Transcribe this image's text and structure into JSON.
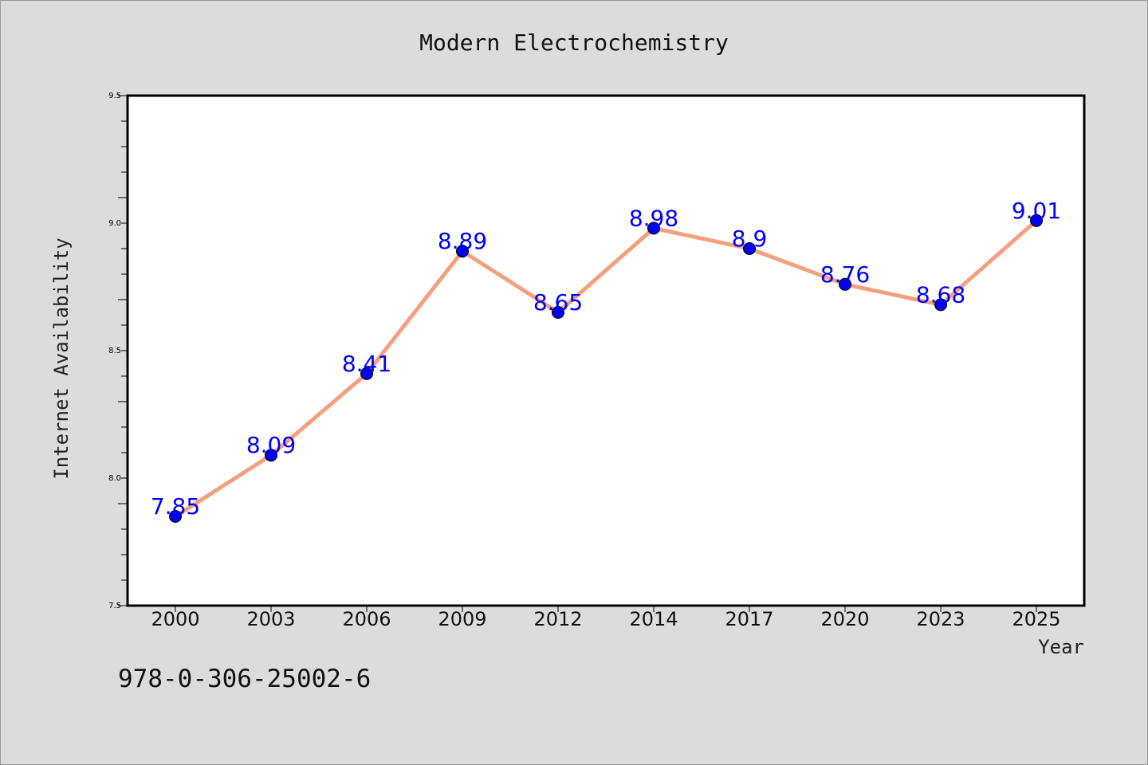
{
  "chart_data": {
    "type": "line",
    "title": "Modern Electrochemistry",
    "xlabel": "Year",
    "ylabel": "Internet Availability",
    "categories": [
      "2000",
      "2003",
      "2006",
      "2009",
      "2012",
      "2014",
      "2017",
      "2020",
      "2023",
      "2025"
    ],
    "values": [
      7.85,
      8.09,
      8.41,
      8.89,
      8.65,
      8.98,
      8.9,
      8.76,
      8.68,
      9.01
    ],
    "data_labels": [
      "7.85",
      "8.09",
      "8.41",
      "8.89",
      "8.65",
      "8.98",
      "8.9",
      "8.76",
      "8.68",
      "9.01"
    ],
    "ylim": [
      7.5,
      9.5
    ],
    "yticks": [
      7.5,
      8.0,
      8.5,
      9.0,
      9.5
    ],
    "ytick_labels": [
      "7.5",
      "8.0",
      "8.5",
      "9.0",
      "9.5"
    ],
    "grid": false,
    "legend": "none",
    "colors": {
      "line": "#f4a07e",
      "marker": "#0000ee",
      "data_label": "#0000ff",
      "plot_background": "#ffffff",
      "figure_background": "#dcdcdc"
    }
  },
  "footer": {
    "isbn": "978-0-306-25002-6"
  }
}
